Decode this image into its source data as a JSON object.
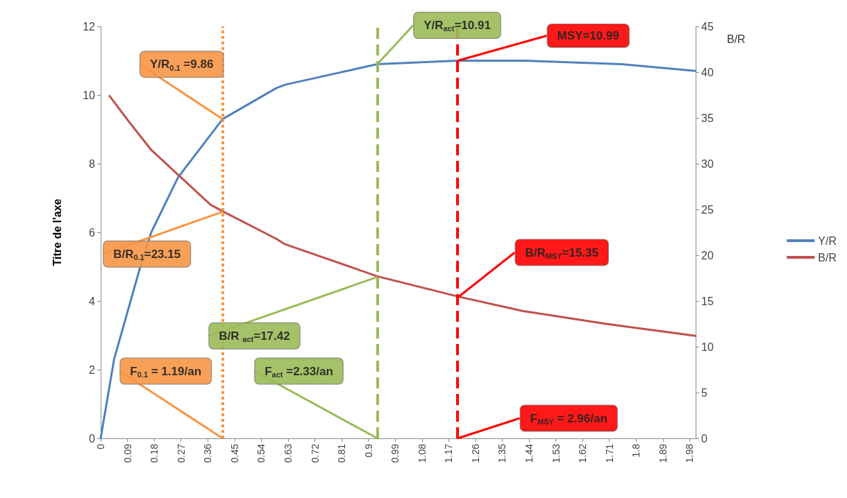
{
  "chart_data": {
    "type": "line",
    "ylabel": "Titre de l'axe",
    "y2label": "B/R",
    "xlim": [
      0,
      2
    ],
    "xticks": [
      0,
      0.09,
      0.18,
      0.27,
      0.36,
      0.45,
      0.54,
      0.63,
      0.72,
      0.81,
      0.9,
      0.99,
      1.08,
      1.17,
      1.26,
      1.35,
      1.44,
      1.53,
      1.62,
      1.71,
      1.8,
      1.89,
      1.98
    ],
    "ylim": [
      0,
      12
    ],
    "yticks": [
      0,
      2,
      4,
      6,
      8,
      10,
      12
    ],
    "y2lim": [
      0,
      45
    ],
    "y2ticks": [
      0,
      5,
      10,
      15,
      20,
      25,
      30,
      35,
      40,
      45
    ],
    "series": [
      {
        "name": "Y/R",
        "color": "#4f81bd",
        "x": [
          0,
          0.045,
          0.13,
          0.17,
          0.26,
          0.41,
          0.59,
          0.62,
          0.93,
          1.2,
          1.42,
          1.75,
          2.0
        ],
        "values": [
          0,
          2.3,
          4.9,
          6.0,
          7.6,
          9.3,
          10.2,
          10.3,
          10.9,
          11.0,
          11.0,
          10.9,
          10.7
        ]
      },
      {
        "name": "B/R",
        "color": "#c0504d",
        "axis": "y2",
        "x": [
          0.03,
          0.09,
          0.17,
          0.37,
          0.41,
          0.59,
          0.62,
          0.93,
          1.2,
          1.42,
          1.7,
          2.0
        ],
        "values": [
          37.4,
          34.8,
          31.5,
          25.5,
          24.8,
          21.8,
          21.2,
          17.7,
          15.5,
          13.9,
          12.5,
          11.2
        ]
      }
    ],
    "ref_lines": [
      {
        "axis": "x",
        "value": 0.41,
        "color": "#f79646",
        "line_style": "dotted"
      },
      {
        "axis": "x",
        "value": 0.93,
        "color": "#9bbb59",
        "line_style": "dashed"
      },
      {
        "axis": "x",
        "value": 1.2,
        "color": "#ff0000",
        "line_style": "dashed"
      }
    ],
    "annotations": [
      {
        "text": "F$_{0.1}$ = 1.19/an",
        "x": 0.41,
        "y": 0
      },
      {
        "text": "F$_{act}$ =2.33/an",
        "x": 0.93,
        "y": 0
      },
      {
        "text": "F$_{MSY}$ = 2.96/an",
        "x": 1.2,
        "y": 0
      },
      {
        "text": "Y/R$_{0.1}$ =9.86",
        "x": 0.41,
        "y": 9.3
      },
      {
        "text": "Y/R$_{act}$=10.91",
        "x": 0.93,
        "y": 10.9
      },
      {
        "text": "MSY=10.99",
        "x": 1.2,
        "y": 11.0
      },
      {
        "text": "B/R$_{0.1}$=23.15",
        "x": 0.41,
        "y": 6.6
      },
      {
        "text": "B/R $_{act}$=17.42",
        "x": 0.93,
        "y": 4.7
      },
      {
        "text": "B/R$_{MSY}$=15.35",
        "x": 1.2,
        "y": 4.1
      }
    ],
    "legend": "right",
    "grid": false,
    "marker": "none",
    "line_style": "solid"
  }
}
